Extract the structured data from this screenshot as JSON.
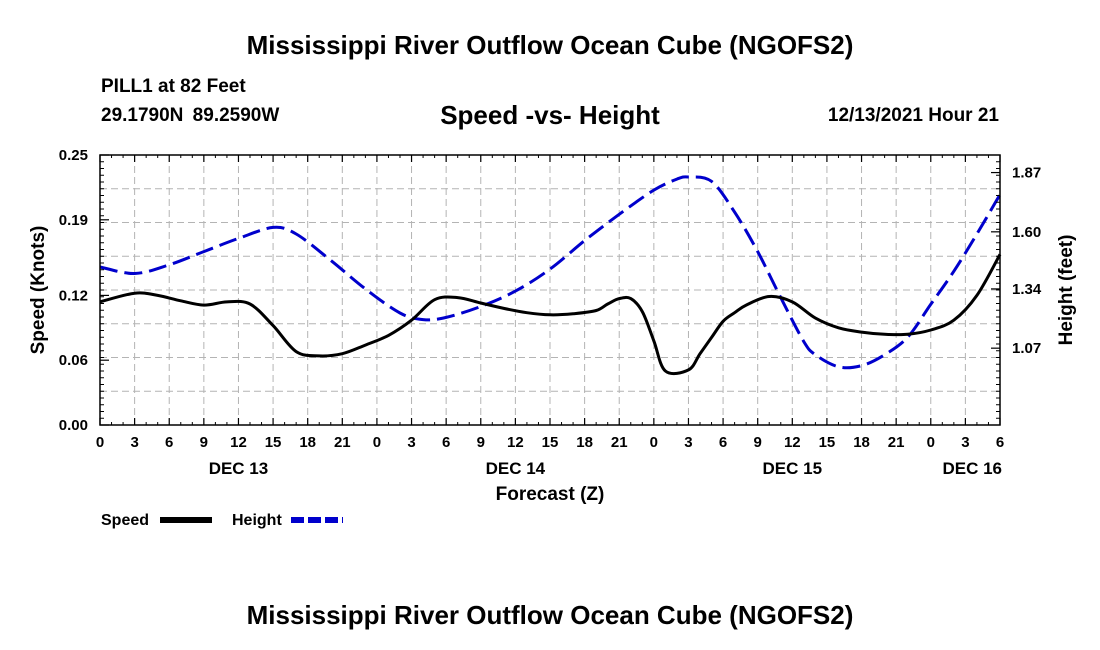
{
  "header": {
    "title": "Mississippi River Outflow Ocean Cube (NGOFS2)",
    "station": "PILL1 at 82 Feet",
    "coordinates": "29.1790N 89.2590W",
    "subtitle": "Speed -vs- Height",
    "datetime": "12/13/2021 Hour 21"
  },
  "footer": {
    "title": "Mississippi River Outflow Ocean Cube (NGOFS2)"
  },
  "chart_data": {
    "type": "line",
    "title": "Speed -vs- Height",
    "xlabel": "Forecast (Z)",
    "ylabel": "Speed (Knots)",
    "y2label": "Height (feet)",
    "x_unit": "hours from Dec 13 00Z",
    "xlim": [
      0,
      78
    ],
    "ylim": [
      0,
      0.25
    ],
    "y2lim": [
      0.72,
      1.95
    ],
    "x_tick_values": [
      0,
      3,
      6,
      9,
      12,
      15,
      18,
      21,
      24,
      27,
      30,
      33,
      36,
      39,
      42,
      45,
      48,
      51,
      54,
      57,
      60,
      63,
      66,
      69,
      72,
      75,
      78
    ],
    "x_tick_labels": [
      "0",
      "3",
      "6",
      "9",
      "12",
      "15",
      "18",
      "21",
      "0",
      "3",
      "6",
      "9",
      "12",
      "15",
      "18",
      "21",
      "0",
      "3",
      "6",
      "9",
      "12",
      "15",
      "18",
      "21",
      "0",
      "3",
      "6"
    ],
    "day_labels": [
      {
        "x": 12,
        "label": "DEC 13"
      },
      {
        "x": 36,
        "label": "DEC 14"
      },
      {
        "x": 60,
        "label": "DEC 15"
      },
      {
        "x": 78,
        "label": "DEC 16"
      }
    ],
    "y_tick_values": [
      0.0,
      0.06,
      0.12,
      0.19,
      0.25
    ],
    "y_tick_labels": [
      "0.00",
      "0.06",
      "0.12",
      "0.19",
      "0.25"
    ],
    "y2_tick_values": [
      1.07,
      1.34,
      1.6,
      1.87
    ],
    "y2_tick_labels": [
      "1.07",
      "1.34",
      "1.60",
      "1.87"
    ],
    "legend": [
      {
        "name": "Speed",
        "color": "#000000",
        "style": "solid"
      },
      {
        "name": "Height",
        "color": "#0000cc",
        "style": "dashed"
      }
    ],
    "series": [
      {
        "name": "Speed",
        "axis": "left",
        "color": "#000000",
        "dash": "solid",
        "x": [
          0,
          3,
          5,
          7,
          9,
          11,
          13,
          15,
          17,
          19,
          21,
          23,
          25,
          27,
          29,
          31,
          33,
          35,
          37,
          39,
          41,
          43,
          44,
          45,
          46,
          47,
          48,
          49,
          51,
          52,
          53,
          54,
          55,
          56,
          58,
          60,
          62,
          64,
          66,
          68,
          70,
          72,
          74,
          76,
          78
        ],
        "values": [
          0.114,
          0.122,
          0.12,
          0.115,
          0.111,
          0.114,
          0.112,
          0.092,
          0.068,
          0.064,
          0.066,
          0.074,
          0.083,
          0.097,
          0.116,
          0.118,
          0.113,
          0.108,
          0.104,
          0.102,
          0.103,
          0.106,
          0.112,
          0.117,
          0.117,
          0.105,
          0.078,
          0.05,
          0.051,
          0.066,
          0.081,
          0.096,
          0.104,
          0.111,
          0.119,
          0.114,
          0.099,
          0.09,
          0.086,
          0.084,
          0.084,
          0.088,
          0.097,
          0.12,
          0.158
        ]
      },
      {
        "name": "Height",
        "axis": "right",
        "color": "#0000cc",
        "dash": "dashed",
        "x": [
          0,
          3,
          6,
          9,
          12,
          15,
          17,
          20,
          23,
          26,
          28,
          30,
          33,
          36,
          39,
          42,
          45,
          48,
          50,
          51,
          53,
          55,
          57,
          59,
          61,
          62,
          64,
          66,
          68,
          70,
          72,
          74,
          76,
          78
        ],
        "values": [
          1.44,
          1.41,
          1.45,
          1.51,
          1.57,
          1.62,
          1.59,
          1.47,
          1.34,
          1.23,
          1.2,
          1.21,
          1.26,
          1.33,
          1.43,
          1.56,
          1.68,
          1.79,
          1.84,
          1.85,
          1.83,
          1.69,
          1.51,
          1.3,
          1.1,
          1.04,
          0.985,
          0.99,
          1.04,
          1.12,
          1.27,
          1.42,
          1.59,
          1.77
        ]
      }
    ]
  }
}
